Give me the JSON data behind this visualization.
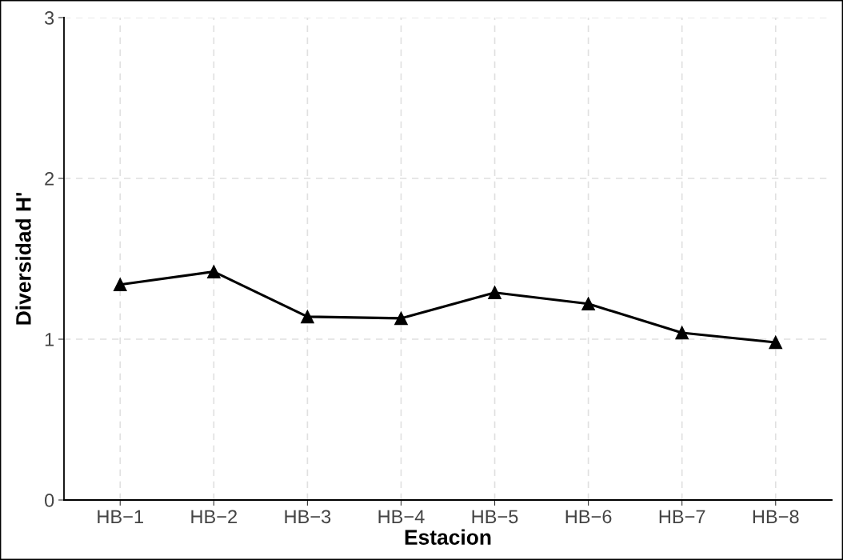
{
  "chart_data": {
    "type": "line",
    "xlabel": "Estacion",
    "ylabel": "Diversidad H'",
    "categories": [
      "HB−1",
      "HB−2",
      "HB−3",
      "HB−4",
      "HB−5",
      "HB−6",
      "HB−7",
      "HB−8"
    ],
    "series": [
      {
        "color": "#000000",
        "values": [
          1.34,
          1.42,
          1.14,
          1.13,
          1.29,
          1.22,
          1.04,
          0.98
        ]
      }
    ],
    "ylim": [
      0,
      3
    ],
    "yticks": [
      0,
      1,
      2,
      3
    ],
    "grid": true,
    "marker": "triangle",
    "line_style": "solid"
  }
}
